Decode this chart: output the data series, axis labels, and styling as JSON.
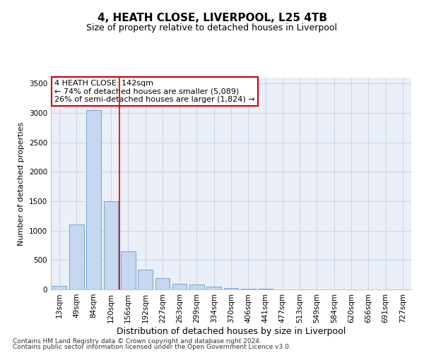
{
  "title": "4, HEATH CLOSE, LIVERPOOL, L25 4TB",
  "subtitle": "Size of property relative to detached houses in Liverpool",
  "xlabel": "Distribution of detached houses by size in Liverpool",
  "ylabel": "Number of detached properties",
  "categories": [
    "13sqm",
    "49sqm",
    "84sqm",
    "120sqm",
    "156sqm",
    "192sqm",
    "227sqm",
    "263sqm",
    "299sqm",
    "334sqm",
    "370sqm",
    "406sqm",
    "441sqm",
    "477sqm",
    "513sqm",
    "549sqm",
    "584sqm",
    "620sqm",
    "656sqm",
    "691sqm",
    "727sqm"
  ],
  "values": [
    55,
    1100,
    3050,
    1500,
    650,
    340,
    190,
    100,
    90,
    50,
    30,
    15,
    8,
    5,
    4,
    3,
    2,
    2,
    1,
    1,
    1
  ],
  "bar_color": "#c5d8ef",
  "bar_edge_color": "#6699cc",
  "red_line_x": 3.5,
  "annotation_text": "4 HEATH CLOSE: 142sqm\n← 74% of detached houses are smaller (5,089)\n26% of semi-detached houses are larger (1,824) →",
  "annotation_box_color": "#ffffff",
  "annotation_box_edge": "#cc0000",
  "red_line_color": "#cc0000",
  "ylim": [
    0,
    3600
  ],
  "yticks": [
    0,
    500,
    1000,
    1500,
    2000,
    2500,
    3000,
    3500
  ],
  "grid_color": "#c8d4e8",
  "bg_color": "#eaeff8",
  "footer_line1": "Contains HM Land Registry data © Crown copyright and database right 2024.",
  "footer_line2": "Contains public sector information licensed under the Open Government Licence v3.0.",
  "title_fontsize": 11,
  "subtitle_fontsize": 9,
  "xlabel_fontsize": 9,
  "ylabel_fontsize": 8,
  "tick_fontsize": 7.5,
  "annotation_fontsize": 8,
  "footer_fontsize": 6.5
}
